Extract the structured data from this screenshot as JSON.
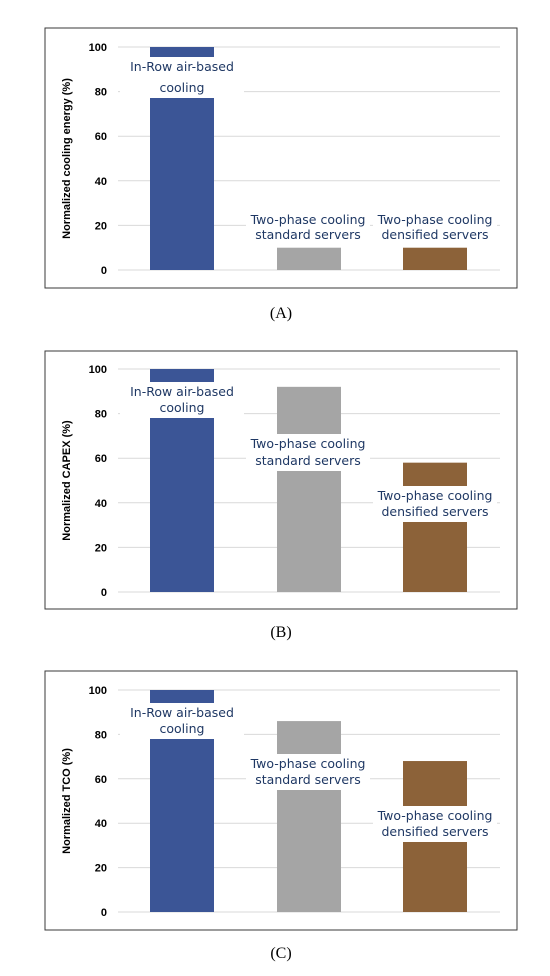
{
  "colors": {
    "in_row": "#3b5596",
    "std": "#a5a5a5",
    "dens": "#8c6239"
  },
  "chart_data": [
    {
      "type": "bar",
      "caption": "(A)",
      "ylabel": "Normalized cooling energy (%)",
      "ylim": [
        0,
        100
      ],
      "yticks": [
        "0",
        "20",
        "40",
        "60",
        "80",
        "100"
      ],
      "grid": true,
      "categories": [
        [
          "In-Row air-based",
          "cooling"
        ],
        [
          "Two-phase cooling",
          "standard servers"
        ],
        [
          "Two-phase cooling",
          "densified servers"
        ]
      ],
      "values": [
        100,
        10,
        10
      ]
    },
    {
      "type": "bar",
      "caption": "(B)",
      "ylabel": "Normalized CAPEX (%)",
      "ylim": [
        0,
        100
      ],
      "yticks": [
        "0",
        "20",
        "40",
        "60",
        "80",
        "100"
      ],
      "grid": true,
      "categories": [
        [
          "In-Row air-based",
          "cooling"
        ],
        [
          "Two-phase cooling",
          "standard servers"
        ],
        [
          "Two-phase cooling",
          "densified servers"
        ]
      ],
      "values": [
        100,
        92,
        58
      ]
    },
    {
      "type": "bar",
      "caption": "(C)",
      "ylabel": "Normalized TCO (%)",
      "ylim": [
        0,
        100
      ],
      "yticks": [
        "0",
        "20",
        "40",
        "60",
        "80",
        "100"
      ],
      "grid": true,
      "categories": [
        [
          "In-Row air-based",
          "cooling"
        ],
        [
          "Two-phase cooling",
          "standard servers"
        ],
        [
          "Two-phase cooling",
          "densified servers"
        ]
      ],
      "values": [
        100,
        86,
        68
      ]
    }
  ]
}
